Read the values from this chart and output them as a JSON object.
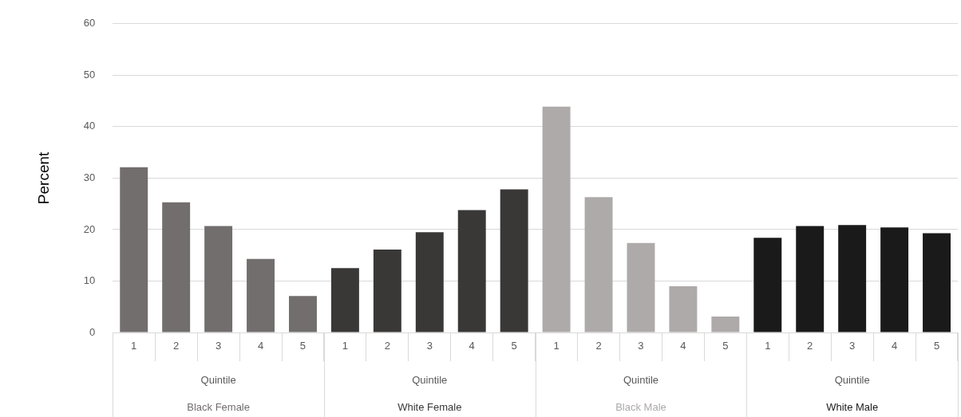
{
  "chart_data": {
    "type": "bar",
    "ylabel": "Percent",
    "xlabel": "Quintile",
    "categories": [
      "1",
      "2",
      "3",
      "4",
      "5",
      "1",
      "2",
      "3",
      "4",
      "5",
      "1",
      "2",
      "3",
      "4",
      "5",
      "1",
      "2",
      "3",
      "4",
      "5"
    ],
    "series": [
      {
        "name": "Black Female",
        "color": "#726e6d",
        "values": [
          32.1,
          25.3,
          20.7,
          14.3,
          7.1,
          null,
          null,
          null,
          null,
          null,
          null,
          null,
          null,
          null,
          null,
          null,
          null,
          null,
          null,
          null
        ]
      },
      {
        "name": "White Female",
        "color": "#3a3837",
        "values": [
          null,
          null,
          null,
          null,
          null,
          12.5,
          16.1,
          19.5,
          23.8,
          27.8,
          null,
          null,
          null,
          null,
          null,
          null,
          null,
          null,
          null,
          null
        ]
      },
      {
        "name": "Black Male",
        "color": "#aeaaa9",
        "values": [
          null,
          null,
          null,
          null,
          null,
          null,
          null,
          null,
          null,
          null,
          43.9,
          26.3,
          17.4,
          9.0,
          3.1,
          null,
          null,
          null,
          null,
          null
        ]
      },
      {
        "name": "White Male",
        "color": "#1a1a1a",
        "values": [
          null,
          null,
          null,
          null,
          null,
          null,
          null,
          null,
          null,
          null,
          null,
          null,
          null,
          null,
          null,
          18.4,
          20.7,
          20.9,
          20.4,
          19.3
        ]
      }
    ],
    "ylim": [
      0,
      60
    ],
    "yticks": [
      0,
      10,
      20,
      30,
      40,
      50,
      60
    ],
    "grid": "y",
    "legend": false
  }
}
